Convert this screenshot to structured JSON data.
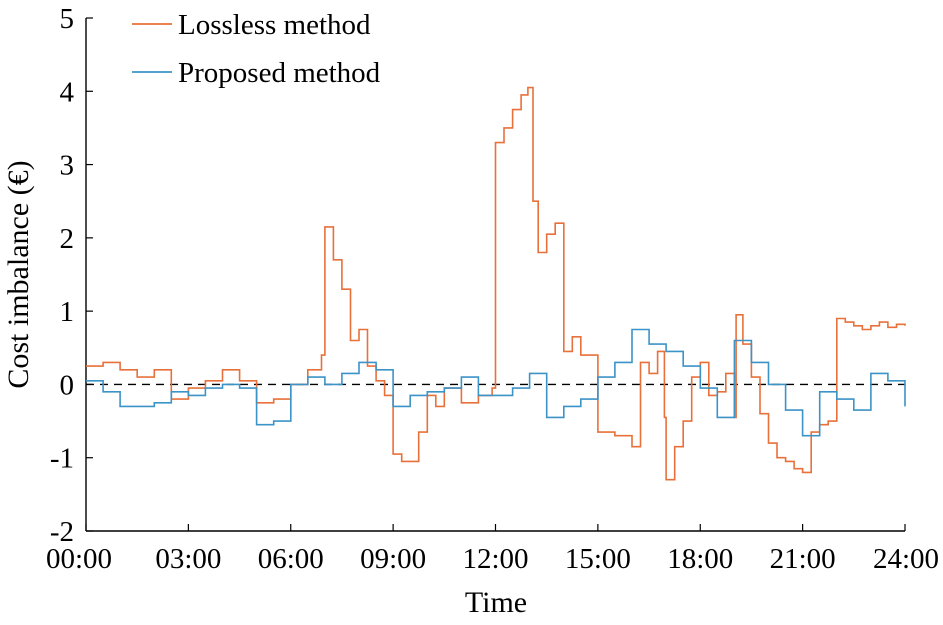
{
  "chart_data": {
    "type": "line",
    "step": true,
    "title": "",
    "xlabel": "Time",
    "ylabel": "Cost imbalance (€)",
    "xlim": [
      0,
      24
    ],
    "ylim": [
      -2,
      5
    ],
    "x_tick_labels": [
      "00:00",
      "03:00",
      "06:00",
      "09:00",
      "12:00",
      "15:00",
      "18:00",
      "21:00",
      "24:00"
    ],
    "y_tick_labels": [
      "-2",
      "-1",
      "0",
      "1",
      "2",
      "3",
      "4",
      "5"
    ],
    "reference_line": {
      "y": 0,
      "style": "dashed",
      "color": "#000000"
    },
    "legend_position": "top-left",
    "grid": false,
    "series": [
      {
        "name": "Lossless method",
        "color": "#E8703A",
        "x": [
          0,
          0.5,
          1,
          1.5,
          2,
          2.5,
          3,
          3.5,
          4,
          4.5,
          5,
          5.5,
          6,
          6.5,
          6.9,
          7,
          7.25,
          7.5,
          7.75,
          8,
          8.25,
          8.5,
          8.75,
          9,
          9.25,
          9.5,
          9.75,
          10,
          10.25,
          10.5,
          11,
          11.5,
          11.9,
          12,
          12.25,
          12.5,
          12.75,
          12.95,
          13.1,
          13.25,
          13.5,
          13.75,
          14,
          14.25,
          14.5,
          15,
          15.5,
          16,
          16.25,
          16.5,
          16.75,
          16.95,
          17,
          17.25,
          17.5,
          17.75,
          18,
          18.25,
          18.5,
          18.75,
          19,
          19.05,
          19.25,
          19.5,
          19.75,
          20,
          20.25,
          20.5,
          20.75,
          21,
          21.25,
          21.5,
          21.75,
          22,
          22.25,
          22.5,
          22.75,
          23,
          23.25,
          23.5,
          23.75,
          24
        ],
        "values": [
          0.25,
          0.3,
          0.2,
          0.1,
          0.2,
          -0.2,
          -0.05,
          0.05,
          0.2,
          0.05,
          -0.25,
          -0.2,
          0,
          0.2,
          0.4,
          2.15,
          1.7,
          1.3,
          0.6,
          0.75,
          0.25,
          0.05,
          -0.15,
          -0.95,
          -1.05,
          -1.05,
          -0.65,
          -0.15,
          -0.3,
          -0.05,
          -0.25,
          -0.15,
          -0.05,
          3.3,
          3.5,
          3.75,
          3.95,
          4.05,
          2.5,
          1.8,
          2.05,
          2.2,
          0.45,
          0.65,
          0.4,
          -0.65,
          -0.7,
          -0.85,
          0.3,
          0.15,
          0.45,
          -0.45,
          -1.3,
          -0.85,
          -0.5,
          0.1,
          0.3,
          -0.15,
          -0.1,
          0.15,
          -0.45,
          0.95,
          0.55,
          0.1,
          -0.4,
          -0.8,
          -1.0,
          -1.05,
          -1.15,
          -1.2,
          -0.65,
          -0.55,
          -0.5,
          0.9,
          0.85,
          0.8,
          0.75,
          0.8,
          0.85,
          0.78,
          0.82,
          0.8
        ]
      },
      {
        "name": "Proposed method",
        "color": "#3B93C8",
        "x": [
          0,
          0.5,
          1,
          1.5,
          2,
          2.5,
          3,
          3.5,
          4,
          4.5,
          5,
          5.5,
          6,
          6.5,
          7,
          7.5,
          8,
          8.5,
          9,
          9.5,
          10,
          10.5,
          11,
          11.5,
          12,
          12.5,
          13,
          13.5,
          14,
          14.5,
          15,
          15.5,
          16,
          16.5,
          17,
          17.5,
          18,
          18.5,
          19,
          19.5,
          20,
          20.5,
          21,
          21.5,
          22,
          22.5,
          23,
          23.5,
          24
        ],
        "values": [
          0.05,
          -0.1,
          -0.3,
          -0.3,
          -0.25,
          -0.1,
          -0.15,
          -0.05,
          0,
          -0.05,
          -0.55,
          -0.5,
          0,
          0.1,
          0,
          0.15,
          0.3,
          0.2,
          -0.3,
          -0.15,
          -0.1,
          -0.05,
          0.1,
          -0.15,
          -0.15,
          -0.05,
          0.15,
          -0.45,
          -0.3,
          -0.2,
          0.1,
          0.3,
          0.75,
          0.55,
          0.45,
          0.25,
          -0.05,
          -0.45,
          0.6,
          0.3,
          0.0,
          -0.35,
          -0.7,
          -0.1,
          -0.2,
          -0.35,
          0.15,
          0.05,
          -0.3
        ]
      }
    ]
  }
}
